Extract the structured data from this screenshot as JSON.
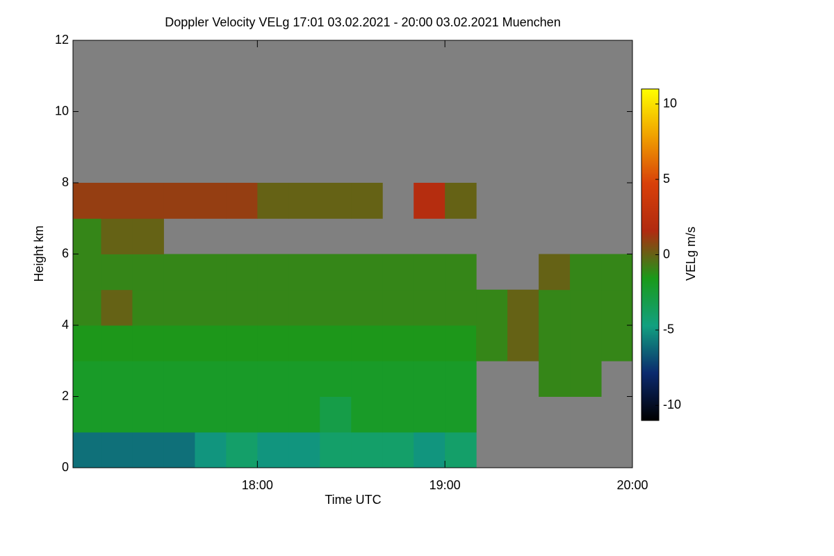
{
  "chart_data": {
    "type": "heatmap",
    "title": "Doppler Velocity VELg   17:01 03.02.2021 - 20:00 03.02.2021 Muenchen",
    "x_label": "Time UTC",
    "y_label": "Height km",
    "colorbar_label": "VELg m/s",
    "xlim": [
      17.0167,
      20.0
    ],
    "ylim": [
      0,
      12
    ],
    "zlim": [
      -11,
      11
    ],
    "xticks": [
      {
        "value": 18,
        "label": "18:00"
      },
      {
        "value": 19,
        "label": "19:00"
      },
      {
        "value": 20,
        "label": "20:00"
      }
    ],
    "yticks": [
      0,
      2,
      4,
      6,
      8,
      10,
      12
    ],
    "zticks": [
      -10,
      -5,
      0,
      5,
      10
    ],
    "missing_color": "#808080",
    "colormap": [
      "#000000",
      "#0b2a6e",
      "#12a080",
      "#1a9a1a",
      "#b02a10",
      "#d8400a",
      "#f0a000",
      "#ffff00"
    ],
    "xbins": [
      17.0167,
      17.1667,
      17.3333,
      17.5,
      17.6667,
      17.8333,
      18,
      18.1667,
      18.3333,
      18.5,
      18.6667,
      18.8333,
      19,
      19.1667,
      19.3333,
      19.5,
      19.6667,
      19.8333,
      20
    ],
    "ybins": [
      0,
      1,
      2,
      3,
      4,
      5,
      6,
      7,
      8,
      12
    ],
    "z": [
      [
        -6,
        -6,
        -6,
        -6,
        -5,
        -4,
        -5,
        -5,
        -4,
        -4,
        -4,
        -5,
        -4,
        null,
        null,
        null,
        null,
        null
      ],
      [
        -2,
        -2,
        -2,
        -2,
        -2,
        -2,
        -2,
        -2,
        -3,
        -2,
        -2,
        -2,
        -2,
        null,
        null,
        null,
        null,
        null
      ],
      [
        -2,
        -2,
        -2,
        -2,
        -2,
        -2,
        -2,
        -2,
        -2,
        -2,
        -2,
        -2,
        -2,
        null,
        null,
        -1,
        -1,
        null
      ],
      [
        -1.5,
        -1.5,
        -1.5,
        -1.5,
        -1.5,
        -1.5,
        -1.5,
        -1.5,
        -1.5,
        -1.5,
        -1.5,
        -1.5,
        -1.5,
        -1,
        0,
        -1,
        -1,
        -1
      ],
      [
        -1,
        0,
        -1,
        -1,
        -1,
        -1,
        -1,
        -1,
        -1,
        -1,
        -1,
        -1,
        -1,
        -1,
        0,
        -1,
        -1,
        -1
      ],
      [
        -1,
        -1,
        -1,
        -1,
        -1,
        -1,
        -1,
        -1,
        -1,
        -1,
        -1,
        -1,
        -1,
        null,
        null,
        0,
        -1,
        -1
      ],
      [
        -1,
        0,
        0,
        null,
        null,
        null,
        null,
        null,
        null,
        null,
        null,
        null,
        null,
        null,
        null,
        null,
        null,
        null
      ],
      [
        1,
        1,
        1,
        1,
        1,
        1,
        0,
        0,
        0,
        0,
        null,
        2,
        0,
        null,
        null,
        null,
        null,
        null
      ],
      [
        null,
        null,
        null,
        null,
        null,
        null,
        null,
        null,
        null,
        null,
        null,
        null,
        null,
        null,
        null,
        null,
        null,
        null
      ]
    ]
  }
}
